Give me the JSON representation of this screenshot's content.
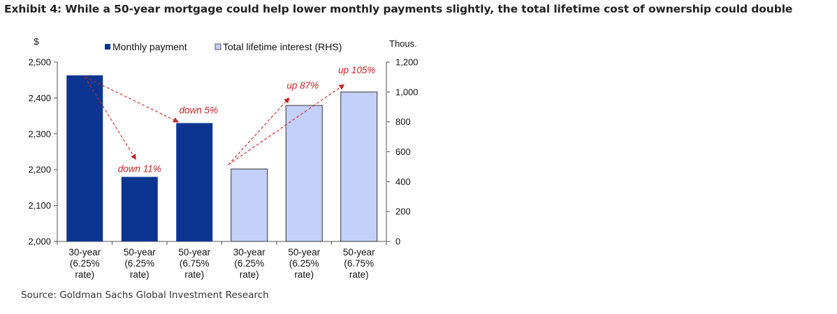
{
  "title": "Exhibit 4: While a 50-year mortgage could help lower monthly payments slightly, the total lifetime cost of ownership could double",
  "source": "Source: Goldman Sachs Global Investment Research",
  "chart_data": {
    "type": "bar",
    "categories": [
      [
        "30-year",
        "(6.25%",
        "rate)"
      ],
      [
        "50-year",
        "(6.25%",
        "rate)"
      ],
      [
        "50-year",
        "(6.75%",
        "rate)"
      ],
      [
        "30-year",
        "(6.25%",
        "rate)"
      ],
      [
        "50-year",
        "(6.25%",
        "rate)"
      ],
      [
        "50-year",
        "(6.75%",
        "rate)"
      ]
    ],
    "series": [
      {
        "name": "Monthly payment",
        "axis": "left",
        "color": "#0b3591",
        "values": [
          2463,
          2180,
          2330,
          null,
          null,
          null
        ]
      },
      {
        "name": "Total lifetime interest (RHS)",
        "axis": "right",
        "color": "#c3d0f9",
        "values": [
          null,
          null,
          null,
          485,
          910,
          1000
        ]
      }
    ],
    "left_axis": {
      "unit": "$",
      "min": 2000,
      "max": 2500,
      "ticks": [
        2000,
        2100,
        2200,
        2300,
        2400,
        2500
      ],
      "tick_labels": [
        "2,000",
        "2,100",
        "2,200",
        "2,300",
        "2,400",
        "2,500"
      ]
    },
    "right_axis": {
      "unit": "Thous.",
      "min": 0,
      "max": 1200,
      "ticks": [
        0,
        200,
        400,
        600,
        800,
        1000,
        1200
      ],
      "tick_labels": [
        "0",
        "200",
        "400",
        "600",
        "800",
        "1,000",
        "1,200"
      ]
    },
    "annotations": [
      {
        "text": "down  11%",
        "from": 0,
        "to": 1
      },
      {
        "text": "down  5%",
        "from": 0,
        "to": 2
      },
      {
        "text": "up  87%",
        "from": 3,
        "to": 4
      },
      {
        "text": "up  105%",
        "from": 3,
        "to": 5
      }
    ],
    "legend_position": "top",
    "grid": false
  }
}
